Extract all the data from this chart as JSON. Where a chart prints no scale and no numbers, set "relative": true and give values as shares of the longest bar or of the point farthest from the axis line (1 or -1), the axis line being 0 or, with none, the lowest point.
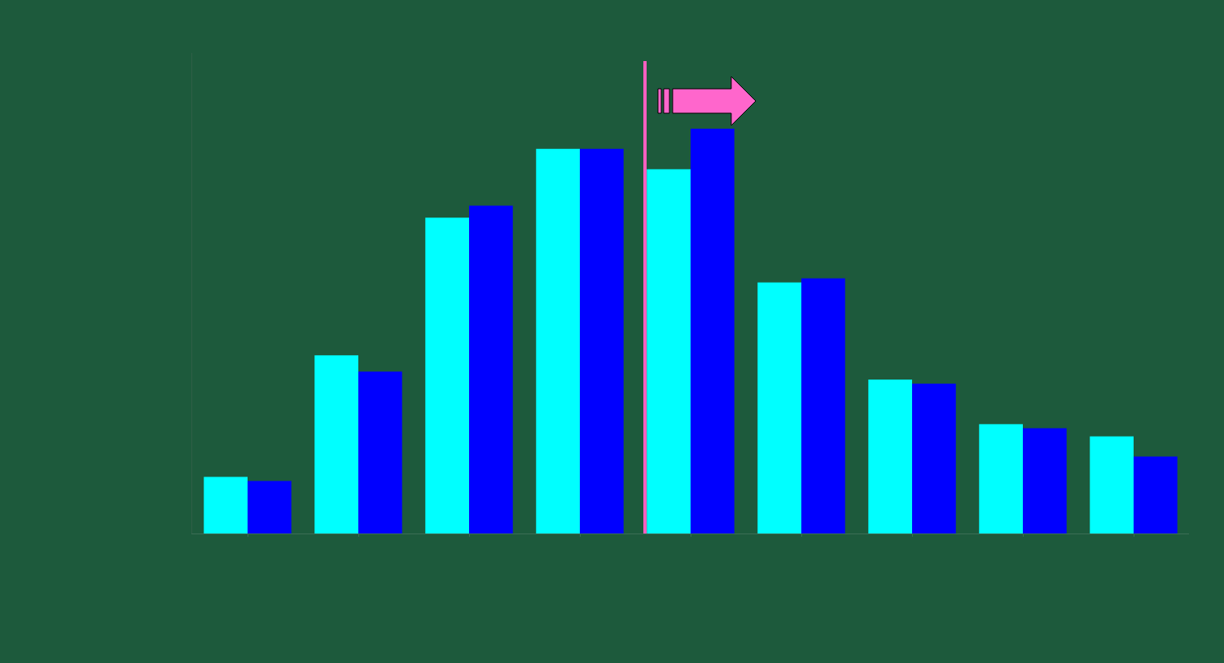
{
  "chart_data": {
    "type": "bar",
    "relative": true,
    "categories": [
      null,
      null,
      null,
      null,
      null,
      null,
      null,
      null,
      null
    ],
    "series": [
      {
        "color": "#00ffff",
        "values": [
          0.14,
          0.44,
          0.78,
          0.95,
          0.9,
          0.62,
          0.38,
          0.27,
          0.24
        ]
      },
      {
        "color": "#0000ff",
        "values": [
          0.13,
          0.4,
          0.81,
          0.95,
          1.0,
          0.63,
          0.37,
          0.26,
          0.19
        ]
      }
    ],
    "legend": false,
    "grid": false
  }
}
